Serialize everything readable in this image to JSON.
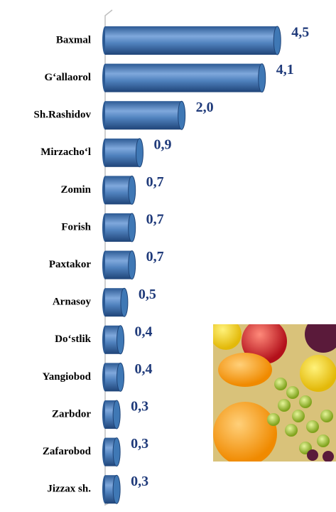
{
  "chart_data": {
    "type": "bar",
    "orientation": "horizontal",
    "categories": [
      "Baxmal",
      "G‘allaorol",
      "Sh.Rashidov",
      "Mirzacho‘l",
      "Zomin",
      "Forish",
      "Paxtakor",
      "Arnasoy",
      "Do‘stlik",
      "Yangiobod",
      "Zarbdor",
      "Zafarobod",
      "Jizzax sh."
    ],
    "values": [
      4.5,
      4.1,
      2.0,
      0.9,
      0.7,
      0.7,
      0.7,
      0.5,
      0.4,
      0.4,
      0.3,
      0.3,
      0.3
    ],
    "value_labels": [
      "4,5",
      "4,1",
      "2,0",
      "0,9",
      "0,7",
      "0,7",
      "0,7",
      "0,5",
      "0,4",
      "0,4",
      "0,3",
      "0,3",
      "0,3"
    ],
    "color": "#4f81bd",
    "xlim": [
      0,
      6
    ]
  }
}
